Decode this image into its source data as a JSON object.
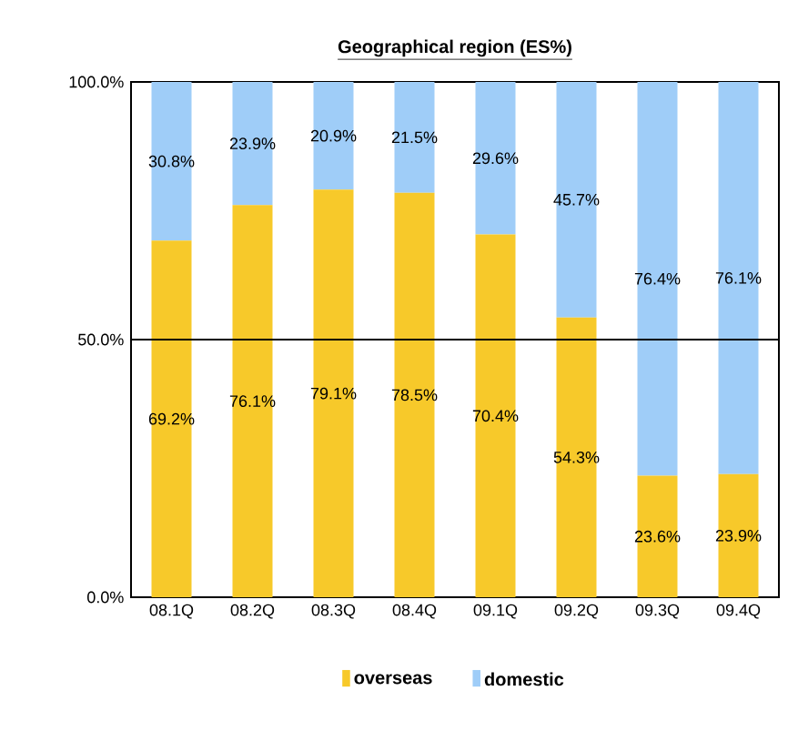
{
  "chart_data": {
    "type": "bar",
    "title": "Geographical region (ES%)",
    "stacked": true,
    "categories": [
      "08.1Q",
      "08.2Q",
      "08.3Q",
      "08.4Q",
      "09.1Q",
      "09.2Q",
      "09.3Q",
      "09.4Q"
    ],
    "series": [
      {
        "name": "overseas",
        "color": "#f7c92a",
        "values": [
          69.2,
          76.1,
          79.1,
          78.5,
          70.4,
          54.3,
          23.6,
          23.9
        ],
        "value_labels": [
          "69.2%",
          "76.1%",
          "79.1%",
          "78.5%",
          "70.4%",
          "54.3%",
          "23.6%",
          "23.9%"
        ]
      },
      {
        "name": "domestic",
        "color": "#9fcdf8",
        "values": [
          30.8,
          23.9,
          20.9,
          21.5,
          29.6,
          45.7,
          76.4,
          76.1
        ],
        "value_labels": [
          "30.8%",
          "23.9%",
          "20.9%",
          "21.5%",
          "29.6%",
          "45.7%",
          "76.4%",
          "76.1%"
        ]
      }
    ],
    "ylim": [
      0,
      100
    ],
    "yticks": [
      {
        "value": 0,
        "label": "0.0%"
      },
      {
        "value": 50,
        "label": "50.0%"
      },
      {
        "value": 100,
        "label": "100.0%"
      }
    ],
    "ref_lines": [
      {
        "axis": "y",
        "value": 50,
        "label": null
      }
    ],
    "legend": "bottom"
  }
}
